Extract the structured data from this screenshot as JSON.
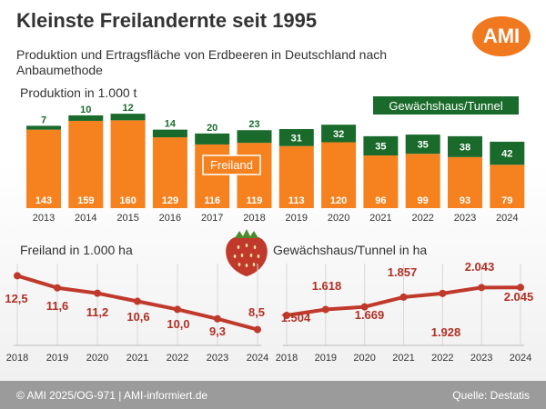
{
  "header": {
    "title": "Kleinste Freilandernte seit 1995",
    "subtitle": "Produktion und Ertragsfläche von Erdbeeren in Deutschland nach Anbaumethode",
    "logo_text": "AMI"
  },
  "footer": {
    "left": "© AMI 2025/OG-971 | AMI-informiert.de",
    "right": "Quelle: Destatis"
  },
  "colors": {
    "freiland": "#f5821f",
    "gewaechshaus": "#1a6b2b",
    "line": "#c0392b",
    "value_text": "#b03025"
  },
  "chart_data": [
    {
      "type": "bar",
      "stacked": true,
      "ylabel": "Produktion in 1.000 t",
      "categories": [
        "2013",
        "2014",
        "2015",
        "2016",
        "2017",
        "2018",
        "2019",
        "2020",
        "2021",
        "2022",
        "2023",
        "2024"
      ],
      "series": [
        {
          "name": "Freiland",
          "values": [
            143,
            159,
            160,
            129,
            116,
            119,
            113,
            120,
            96,
            99,
            93,
            79
          ]
        },
        {
          "name": "Gewächshaus/Tunnel",
          "values": [
            7,
            10,
            12,
            14,
            20,
            23,
            31,
            32,
            35,
            35,
            38,
            42
          ]
        }
      ],
      "ylim": [
        0,
        180
      ],
      "grid": false,
      "legend_placement": "inline"
    },
    {
      "type": "line",
      "title": "Freiland in 1.000 ha",
      "x": [
        "2018",
        "2019",
        "2020",
        "2021",
        "2022",
        "2023",
        "2024"
      ],
      "values": [
        12.5,
        11.6,
        11.2,
        10.6,
        10.0,
        9.3,
        8.5
      ],
      "labels": [
        "12,5",
        "11,6",
        "11,2",
        "10,6",
        "10,0",
        "9,3",
        "8,5"
      ],
      "ylim": [
        8.0,
        13.0
      ],
      "grid": "vertical"
    },
    {
      "type": "line",
      "title": "Gewächshaus/Tunnel in ha",
      "x": [
        "2018",
        "2019",
        "2020",
        "2021",
        "2022",
        "2023",
        "2024"
      ],
      "values": [
        1504,
        1618,
        1669,
        1857,
        1928,
        2043,
        2045
      ],
      "labels": [
        "1.504",
        "1.618",
        "1.669",
        "1.857",
        "1.928",
        "2.043",
        "2.045"
      ],
      "ylim": [
        1100,
        2400
      ],
      "grid": "vertical"
    }
  ]
}
